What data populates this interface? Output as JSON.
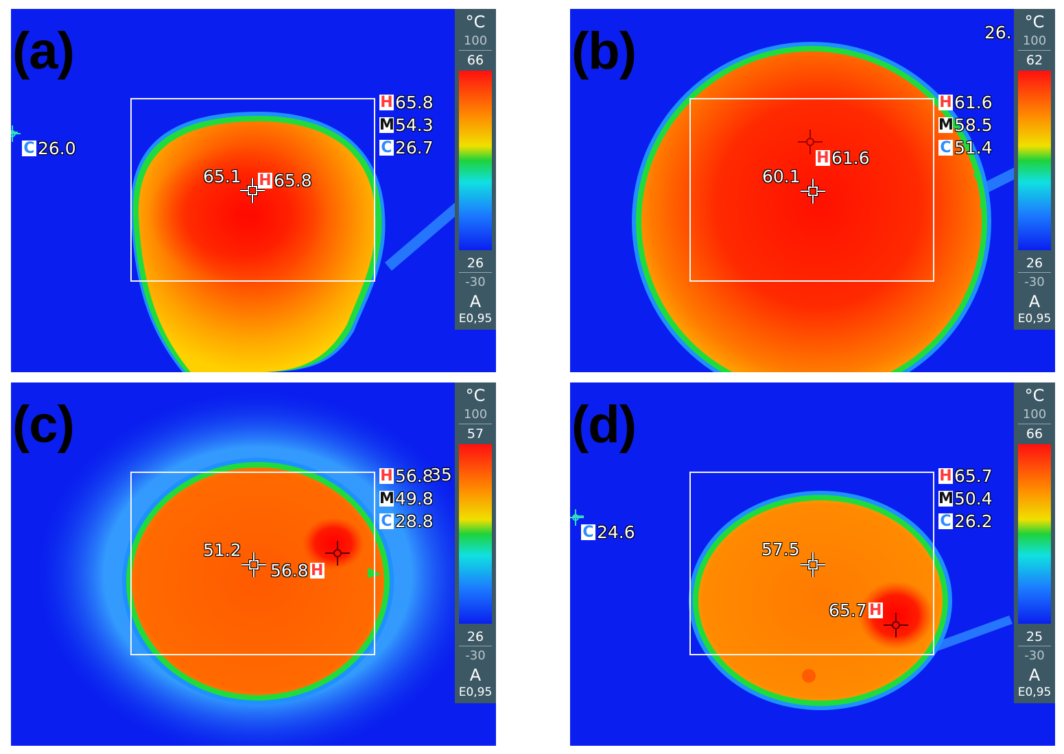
{
  "panels": [
    {
      "label": "(a)",
      "scale": {
        "unit": "°C",
        "range_max": "100",
        "span_max": "66",
        "span_min": "26",
        "range_min": "-30",
        "mode": "A",
        "emissivity": "E0,95"
      },
      "stats": {
        "h_tag": "H",
        "h_value": "65.8",
        "m_tag": "M",
        "m_value": "54.3",
        "c_tag": "C",
        "c_value": "26.7"
      },
      "spot_center": "65.1",
      "spot_hot_tag": "H",
      "spot_hot": "65.8",
      "spot_cold_tag": "C",
      "spot_cold": "26.0"
    },
    {
      "label": "(b)",
      "scale": {
        "unit": "°C",
        "range_max": "100",
        "span_max": "62",
        "span_min": "26",
        "range_min": "-30",
        "mode": "A",
        "emissivity": "E0,95"
      },
      "stats": {
        "h_tag": "H",
        "h_value": "61.6",
        "m_tag": "M",
        "m_value": "58.5",
        "c_tag": "C",
        "c_value": "51.4"
      },
      "spot_center": "60.1",
      "spot_hot_tag": "H",
      "spot_hot": "61.6",
      "overflow_text": "26."
    },
    {
      "label": "(c)",
      "scale": {
        "unit": "°C",
        "range_max": "100",
        "span_max": "57",
        "span_min": "26",
        "range_min": "-30",
        "mode": "A",
        "emissivity": "E0,95"
      },
      "stats": {
        "h_tag": "H",
        "h_value": "56.8",
        "m_tag": "M",
        "m_value": "49.8",
        "c_tag": "C",
        "c_value": "28.8"
      },
      "overlap_text": "35",
      "spot_center": "51.2",
      "spot_hot_tag": "H",
      "spot_hot": "56.8"
    },
    {
      "label": "(d)",
      "scale": {
        "unit": "°C",
        "range_max": "100",
        "span_max": "66",
        "span_min": "25",
        "range_min": "-30",
        "mode": "A",
        "emissivity": "E0,95"
      },
      "stats": {
        "h_tag": "H",
        "h_value": "65.7",
        "m_tag": "M",
        "m_value": "50.4",
        "c_tag": "C",
        "c_value": "26.2"
      },
      "spot_center": "57.5",
      "spot_hot_tag": "H",
      "spot_hot": "65.7",
      "spot_cold_tag": "C",
      "spot_cold": "24.6"
    }
  ],
  "colors": {
    "background": "#0a1fef",
    "hot": "#ff0000",
    "warm": "#ff8a00",
    "edge_green": "#1fdc3c",
    "scale_panel": "#3c5864"
  }
}
